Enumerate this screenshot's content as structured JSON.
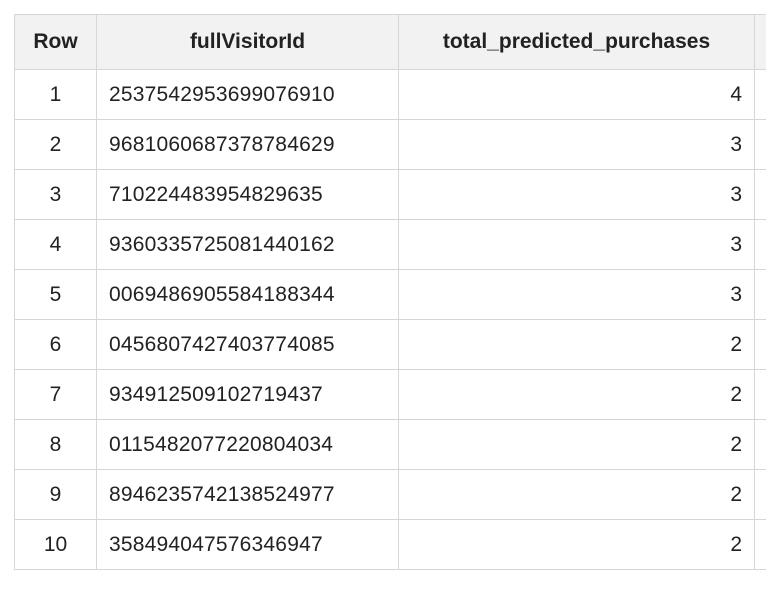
{
  "table": {
    "columns": [
      "Row",
      "fullVisitorId",
      "total_predicted_purchases"
    ],
    "rows": [
      {
        "row": "1",
        "id": "2537542953699076910",
        "total": "4"
      },
      {
        "row": "2",
        "id": "9681060687378784629",
        "total": "3"
      },
      {
        "row": "3",
        "id": "710224483954829635",
        "total": "3"
      },
      {
        "row": "4",
        "id": "9360335725081440162",
        "total": "3"
      },
      {
        "row": "5",
        "id": "0069486905584188344",
        "total": "3"
      },
      {
        "row": "6",
        "id": "0456807427403774085",
        "total": "2"
      },
      {
        "row": "7",
        "id": "934912509102719437",
        "total": "2"
      },
      {
        "row": "8",
        "id": "0115482077220804034",
        "total": "2"
      },
      {
        "row": "9",
        "id": "8946235742138524977",
        "total": "2"
      },
      {
        "row": "10",
        "id": "358494047576346947",
        "total": "2"
      }
    ]
  },
  "colors": {
    "header_bg": "#f2f2f2",
    "border": "#d6d6d6",
    "text": "#222222"
  }
}
